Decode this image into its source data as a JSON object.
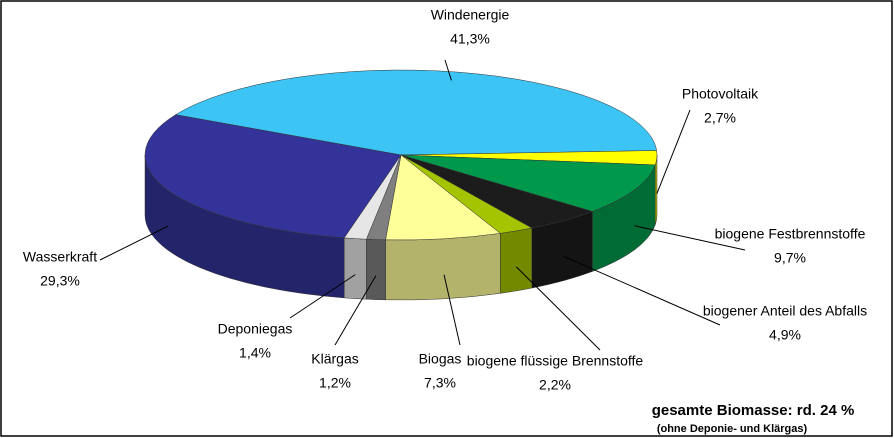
{
  "chart_data": {
    "type": "pie",
    "categories": [
      "Windenergie",
      "Photovoltaik",
      "biogene Festbrennstoffe",
      "biogener Anteil des Abfalls",
      "biogene flüssige Brennstoffe",
      "Biogas",
      "Klärgas",
      "Deponiegas",
      "Wasserkraft"
    ],
    "values": [
      41.3,
      2.7,
      9.7,
      4.9,
      2.2,
      7.3,
      1.2,
      1.4,
      29.3
    ],
    "value_labels": [
      "41,3%",
      "2,7%",
      "9,7%",
      "4,9%",
      "2,2%",
      "7,3%",
      "1,2%",
      "1,4%",
      "29,3%"
    ],
    "colors": [
      "#3cc4f4",
      "#ffff00",
      "#00994c",
      "#1c1c1c",
      "#a4c400",
      "#ffff99",
      "#7f7f7f",
      "#e6e6e6",
      "#333399"
    ],
    "annotations": [
      "gesamte Biomasse: rd. 24 %",
      "(ohne Deponie- und Klärgas)"
    ]
  }
}
